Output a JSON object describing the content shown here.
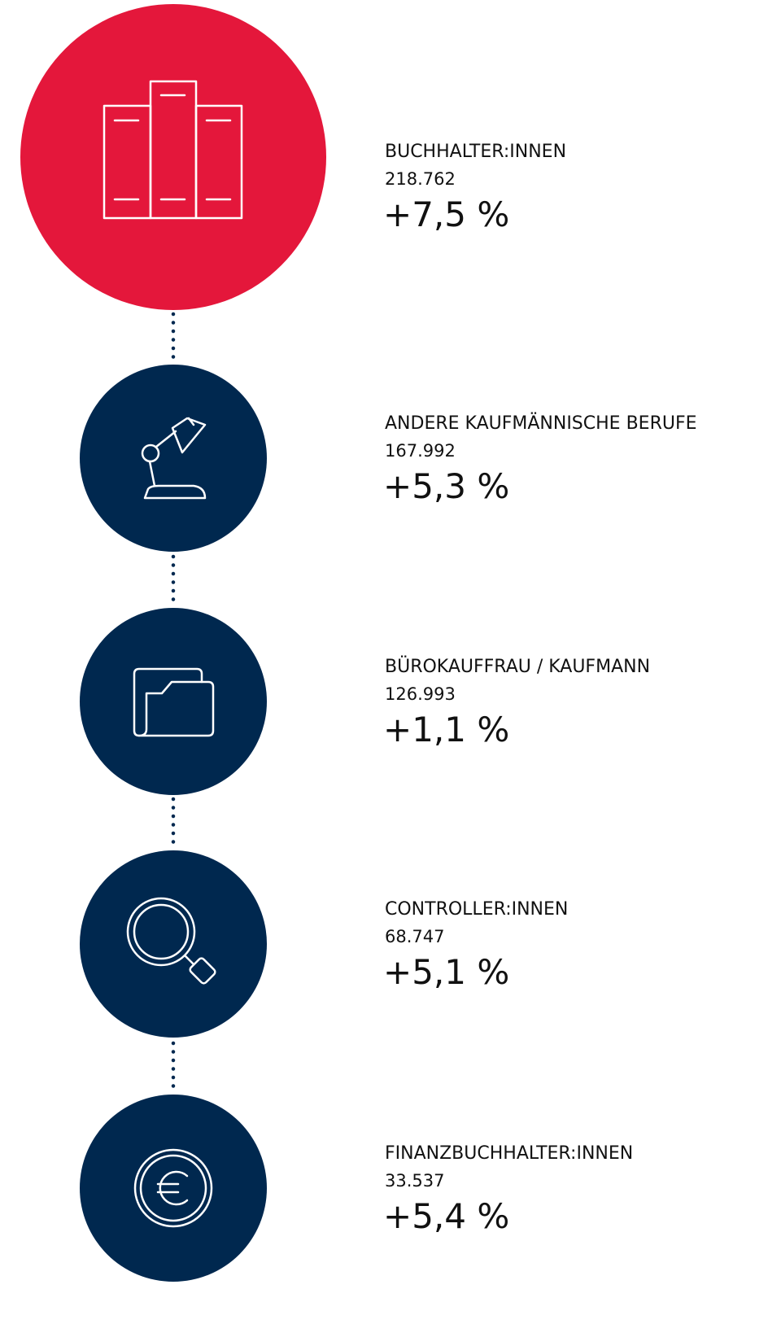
{
  "items": [
    {
      "label": "BUCHHALTER:INNEN",
      "count": "218.762",
      "change": "+7,5 %"
    },
    {
      "label": "ANDERE KAUFMÄNNISCHE BERUFE",
      "count": "167.992",
      "change": "+5,3 %"
    },
    {
      "label": "BÜROKAUFFRAU / KAUFMANN",
      "count": "126.993",
      "change": "+1,1 %"
    },
    {
      "label": "CONTROLLER:INNEN",
      "count": "68.747",
      "change": "+5,1 %"
    },
    {
      "label": "FINANZBUCHHALTER:INNEN",
      "count": "33.537",
      "change": "+5,4 %"
    }
  ]
}
